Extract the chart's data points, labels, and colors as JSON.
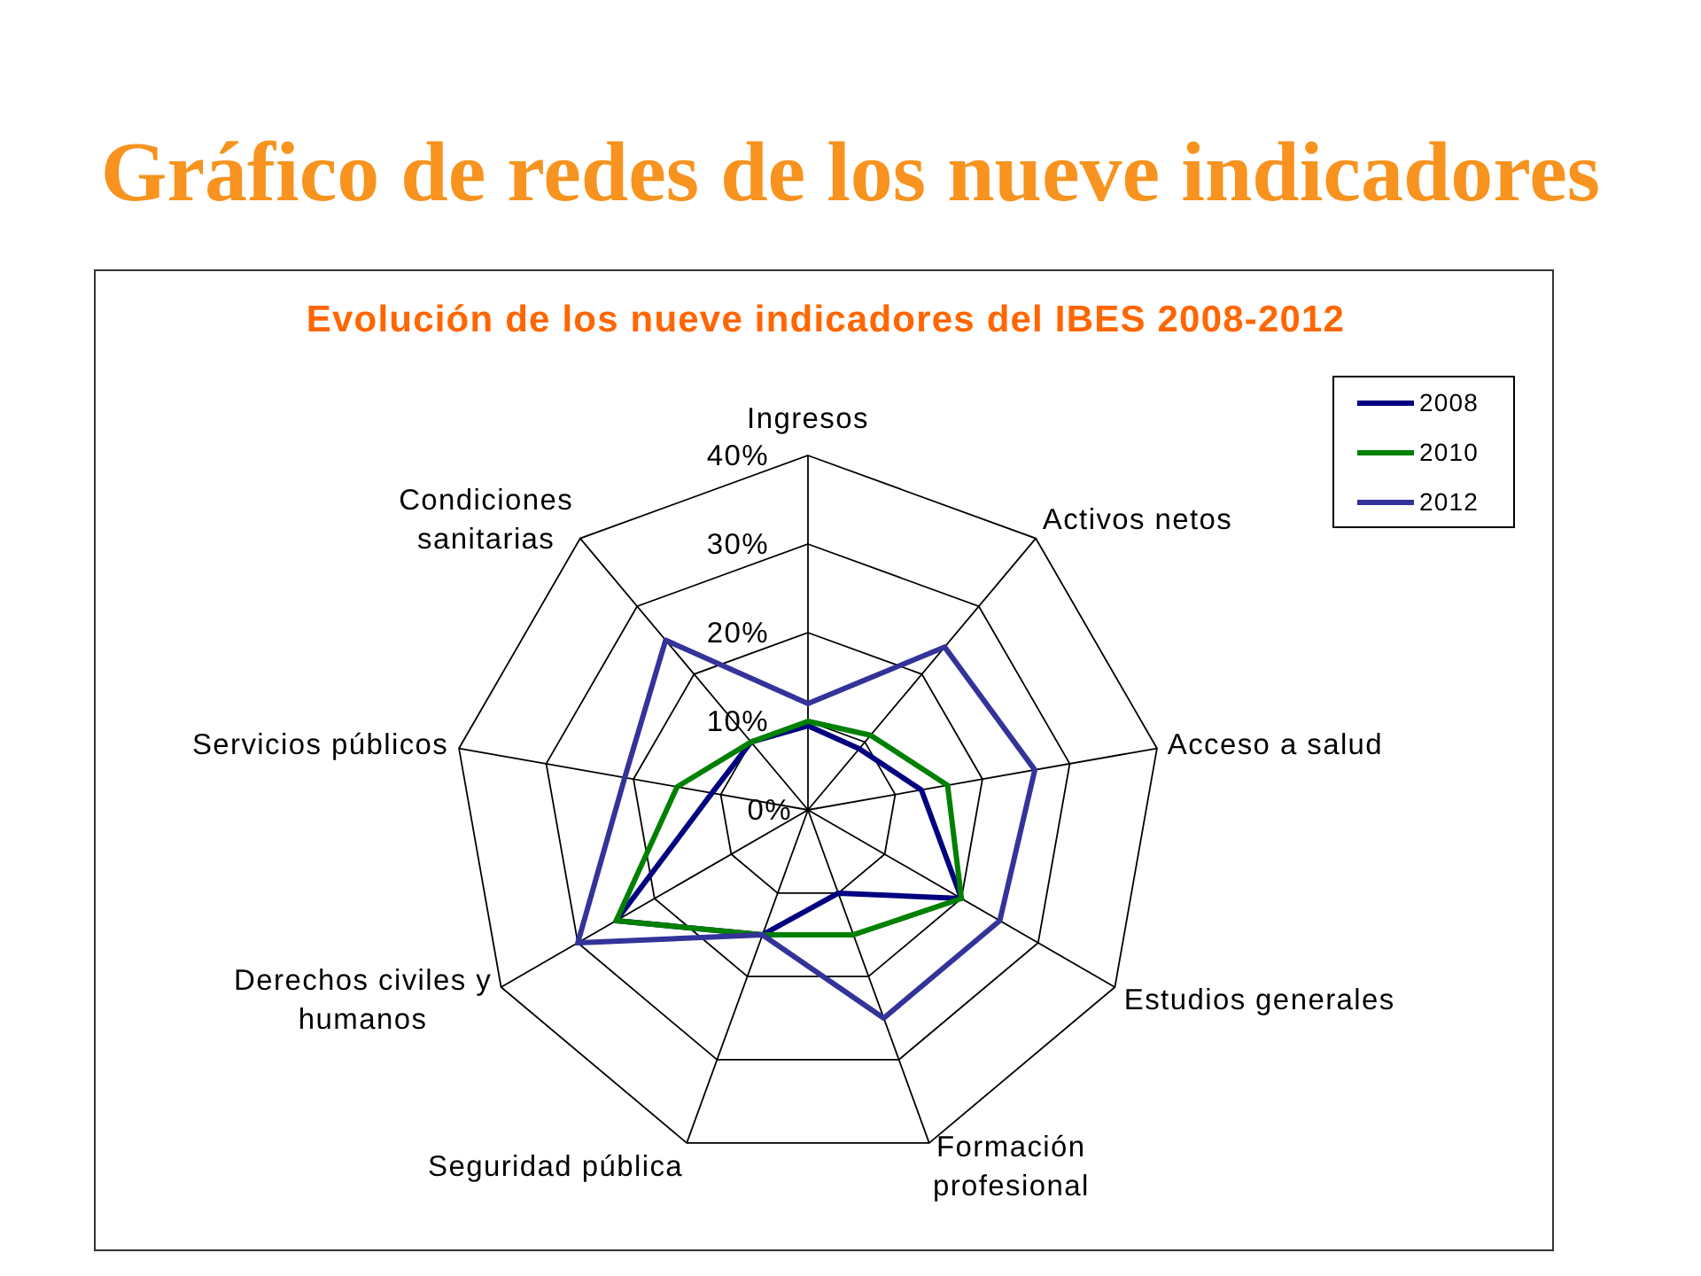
{
  "chart_data": {
    "type": "radar",
    "title": "Gráfico de redes de los nueve indicadores",
    "subtitle": "Evolución de los nueve indicadores del IBES 2008-2012",
    "categories": [
      "Ingresos",
      "Activos netos",
      "Acceso a salud",
      "Estudios generales",
      "Formación profesional",
      "Seguridad pública",
      "Derechos civiles y humanos",
      "Servicios públicos",
      "Condiciones sanitarias"
    ],
    "series": [
      {
        "name": "2008",
        "color": "#000080",
        "values": [
          9.5,
          9,
          13,
          20,
          10,
          15,
          25,
          11,
          10
        ]
      },
      {
        "name": "2010",
        "color": "#008000",
        "values": [
          10,
          11,
          16,
          20,
          15,
          15,
          25,
          15,
          10
        ]
      },
      {
        "name": "2012",
        "color": "#333399",
        "values": [
          12,
          24,
          26,
          25,
          25,
          15,
          30,
          21,
          25
        ]
      }
    ],
    "ylim": [
      0,
      40
    ],
    "yticks": [
      {
        "value": 0,
        "label": "0%"
      },
      {
        "value": 10,
        "label": "10%"
      },
      {
        "value": 20,
        "label": "20%"
      },
      {
        "value": 30,
        "label": "30%"
      },
      {
        "value": 40,
        "label": "40%"
      }
    ],
    "grid": true,
    "legend": "top right",
    "marker": "none",
    "line_style": "solid"
  }
}
